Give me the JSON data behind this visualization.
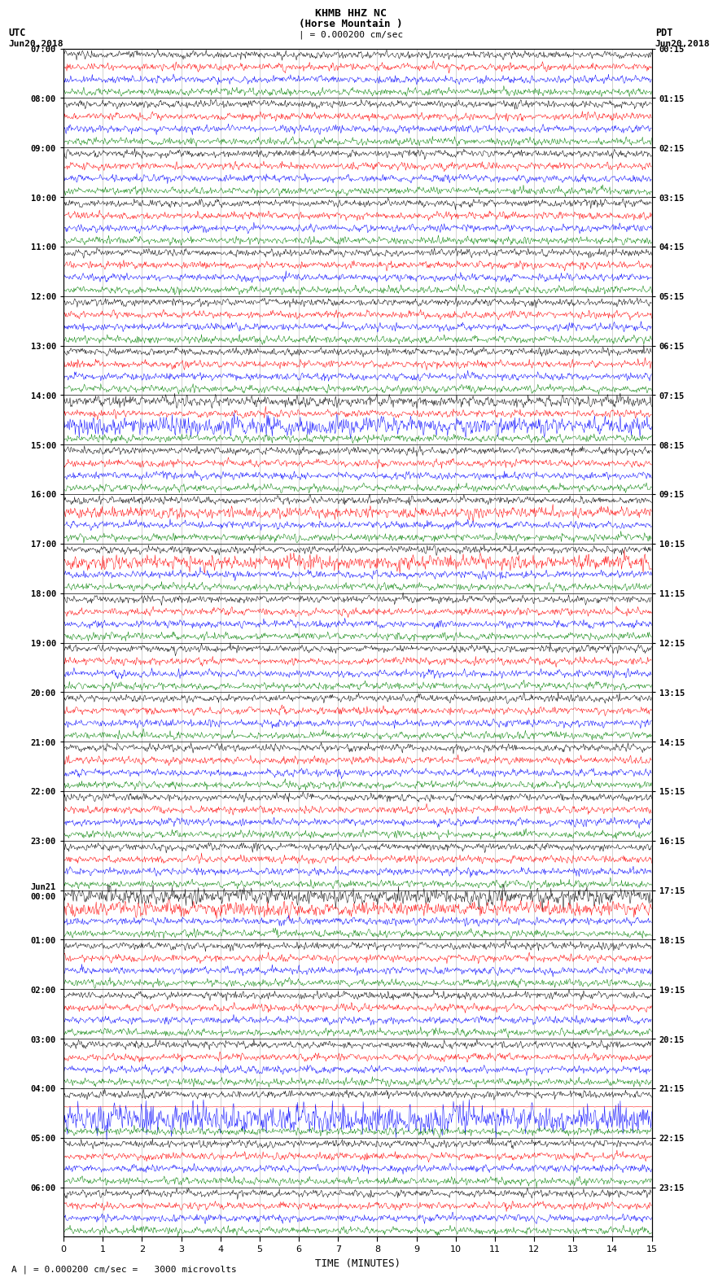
{
  "title_line1": "KHMB HHZ NC",
  "title_line2": "(Horse Mountain )",
  "title_scale": "| = 0.000200 cm/sec",
  "left_label_line1": "UTC",
  "left_label_line2": "Jun20,2018",
  "right_label_line1": "PDT",
  "right_label_line2": "Jun20,2018",
  "xlabel": "TIME (MINUTES)",
  "footer": "A | = 0.000200 cm/sec =   3000 microvolts",
  "trace_colors": [
    "black",
    "red",
    "blue",
    "green"
  ],
  "bg_color": "white",
  "x_min": 0,
  "x_max": 15,
  "traces_per_group": 4,
  "utc_times": [
    "07:00",
    "08:00",
    "09:00",
    "10:00",
    "11:00",
    "12:00",
    "13:00",
    "14:00",
    "15:00",
    "16:00",
    "17:00",
    "18:00",
    "19:00",
    "20:00",
    "21:00",
    "22:00",
    "23:00",
    "Jun21\n00:00",
    "01:00",
    "02:00",
    "03:00",
    "04:00",
    "05:00",
    "06:00"
  ],
  "pdt_times": [
    "00:15",
    "01:15",
    "02:15",
    "03:15",
    "04:15",
    "05:15",
    "06:15",
    "07:15",
    "08:15",
    "09:15",
    "10:15",
    "11:15",
    "12:15",
    "13:15",
    "14:15",
    "15:15",
    "16:15",
    "17:15",
    "18:15",
    "19:15",
    "20:15",
    "21:15",
    "22:15",
    "23:15"
  ],
  "num_hours": 24,
  "samples_per_trace": 900,
  "seed": 12345,
  "trace_amplitude": 0.28,
  "trace_linewidth": 0.35
}
